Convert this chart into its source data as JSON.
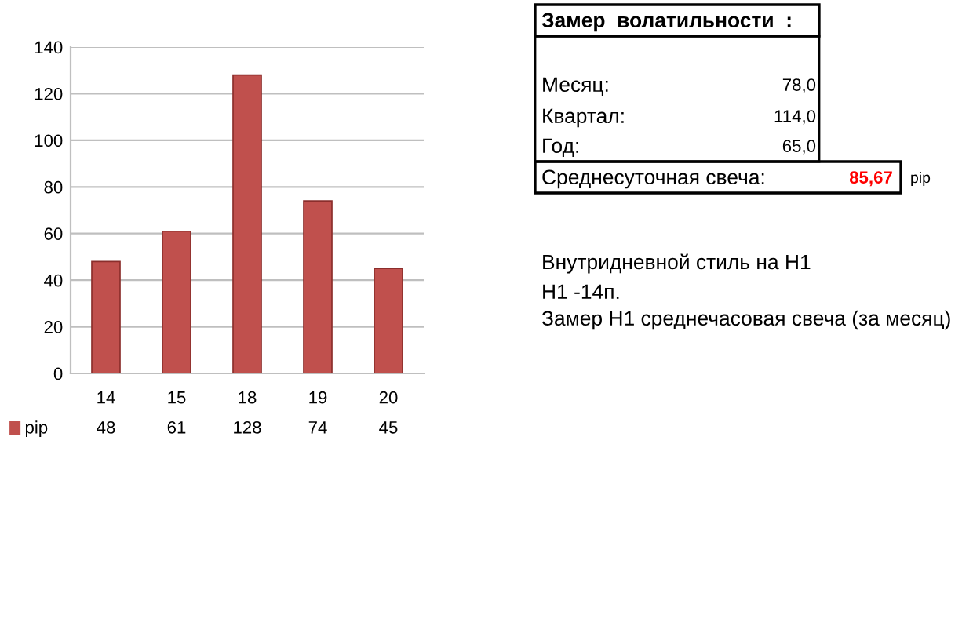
{
  "chart_data": [
    {
      "type": "bar",
      "categories": [
        "14",
        "15",
        "18",
        "19",
        "20"
      ],
      "series": [
        {
          "name": "pip",
          "color": "#c0504d",
          "values": [
            48,
            61,
            128,
            74,
            45
          ]
        }
      ],
      "ylim": [
        0,
        140
      ],
      "yticks": [
        0,
        20,
        40,
        60,
        80,
        100,
        120,
        140
      ],
      "grid": "y",
      "data_labels": true,
      "legend": "bottom"
    },
    {
      "type": "other",
      "title": "Замер  волатильности  :",
      "annotations": [
        "Месяц:",
        "78,0",
        "Квартал:",
        "114,0",
        "Год:",
        "65,0",
        "Среднесуточная свеча:",
        "85,67",
        "pip",
        "Внутридневной стиль на H1",
        "H1 -14п.",
        "Замер H1 среднечасовая свеча (за месяц)"
      ]
    }
  ]
}
